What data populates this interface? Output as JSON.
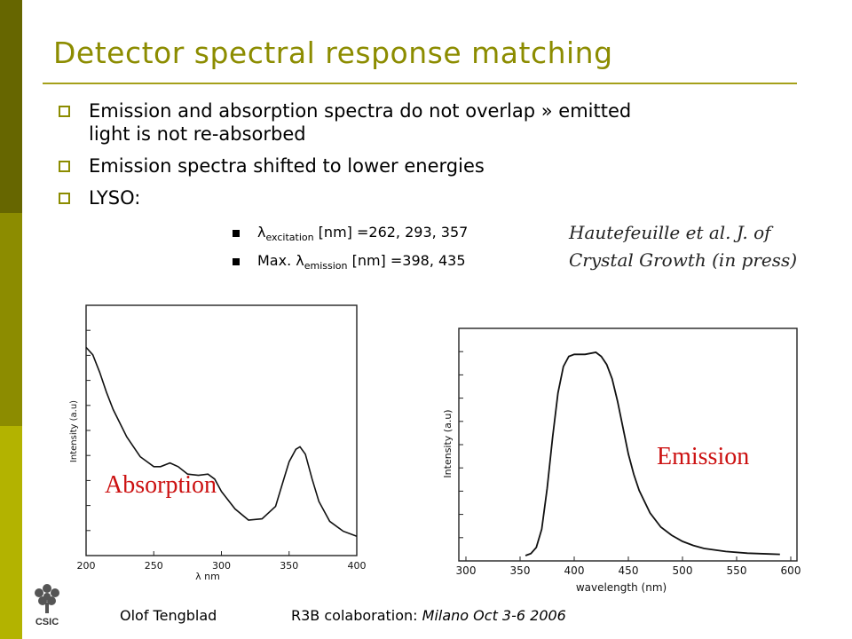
{
  "slide": {
    "title": "Detector spectral response matching",
    "bullets": [
      {
        "text": "Emission and absorption spectra do not overlap » emitted",
        "cont": "light is not re-absorbed"
      },
      {
        "text": "Emission spectra shifted to lower energies"
      },
      {
        "text": "LYSO:"
      }
    ],
    "subbullets": [
      {
        "prefix": "",
        "lambda": "λ",
        "sub": "excitation",
        "text": " [nm] =262, 293, 357"
      },
      {
        "prefix": "Max. ",
        "lambda": "λ",
        "sub": "emission",
        "text": " [nm] =398, 435"
      }
    ],
    "reference": [
      "Hautefeuille et al. J. of",
      "Crystal Growth (in press)"
    ],
    "sidebar_colors": [
      "#666600",
      "#8c8c00",
      "#b3b300"
    ],
    "accent_color": "#8c8c00"
  },
  "chart_data": [
    {
      "type": "line",
      "label": "Absorption",
      "label_color": "#cc1111",
      "xlabel": "λ nm",
      "ylabel": "Intensity (a.u)",
      "xlim": [
        200,
        400
      ],
      "xticks": [
        "200",
        "250",
        "300",
        "350",
        "400"
      ],
      "x": [
        200,
        205,
        210,
        215,
        220,
        230,
        240,
        250,
        255,
        262,
        268,
        275,
        283,
        290,
        295,
        300,
        310,
        320,
        330,
        340,
        345,
        350,
        355,
        358,
        362,
        367,
        372,
        380,
        390,
        400
      ],
      "y": [
        0.82,
        0.79,
        0.72,
        0.64,
        0.57,
        0.46,
        0.38,
        0.34,
        0.34,
        0.355,
        0.34,
        0.31,
        0.305,
        0.31,
        0.29,
        0.24,
        0.17,
        0.125,
        0.13,
        0.18,
        0.27,
        0.36,
        0.41,
        0.42,
        0.39,
        0.29,
        0.2,
        0.12,
        0.08,
        0.06
      ]
    },
    {
      "type": "line",
      "label": "Emission",
      "label_color": "#cc1111",
      "xlabel": "wavelength (nm)",
      "ylabel": "Intensity (a.u)",
      "xlim": [
        300,
        600
      ],
      "xticks": [
        "300",
        "350",
        "400",
        "450",
        "500",
        "550",
        "600"
      ],
      "x": [
        355,
        360,
        365,
        370,
        375,
        380,
        385,
        390,
        395,
        400,
        410,
        420,
        425,
        430,
        435,
        440,
        445,
        450,
        455,
        460,
        470,
        480,
        490,
        500,
        510,
        520,
        540,
        560,
        580,
        590
      ],
      "y": [
        0.0,
        0.01,
        0.04,
        0.13,
        0.33,
        0.58,
        0.8,
        0.93,
        0.98,
        0.99,
        0.99,
        1.0,
        0.98,
        0.94,
        0.87,
        0.76,
        0.63,
        0.5,
        0.4,
        0.32,
        0.21,
        0.14,
        0.1,
        0.07,
        0.05,
        0.035,
        0.02,
        0.012,
        0.008,
        0.006
      ]
    }
  ],
  "footer": {
    "author": "Olof Tengblad",
    "event_prefix": "R3B colaboration: ",
    "event_italic": "Milano  Oct 3-6  2006",
    "logo_text": "CSIC"
  }
}
